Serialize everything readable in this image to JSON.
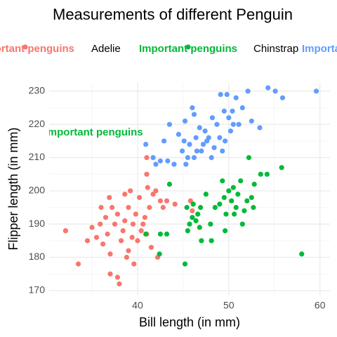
{
  "chart_data": {
    "type": "scatter",
    "title": "Measurements of different Penguin",
    "x_label": "Bill length (in mm)",
    "y_label": "Flipper length (in mm)",
    "legend_key_label": "Important penguins",
    "annotation": {
      "text": "Important penguins",
      "x": 35.2,
      "y": 217.5,
      "color": "#00BA38"
    },
    "xlim": [
      30.3,
      61.1
    ],
    "ylim": [
      168.7,
      232.5
    ],
    "xticks": [
      40,
      50,
      60
    ],
    "yticks": [
      170,
      180,
      190,
      200,
      210,
      220,
      230
    ],
    "xminor": [
      35,
      45,
      55
    ],
    "yminor": [
      175,
      185,
      195,
      205,
      215,
      225
    ],
    "grid": true,
    "series": [
      {
        "name": "Adelie",
        "color": "#F8766D",
        "x": [
          32.1,
          33.5,
          34.5,
          35,
          35.5,
          35.9,
          36.2,
          36.5,
          36.7,
          36.9,
          37,
          37.2,
          37.5,
          37.8,
          37.8,
          38,
          38.2,
          38.4,
          38.6,
          38.8,
          39,
          39.2,
          39.4,
          39.5,
          39.6,
          39.8,
          40,
          40.2,
          40.4,
          40.6,
          40.8,
          41,
          41.1,
          41.3,
          41.5,
          41.7,
          42,
          42.2,
          42.5,
          42.8,
          43.2,
          44.1,
          45.8,
          46,
          41,
          41,
          38.6,
          36,
          37,
          39
        ],
        "values": [
          188,
          178,
          185,
          189,
          186,
          190,
          184,
          192,
          187,
          198,
          181,
          195,
          190,
          174,
          193,
          172,
          185,
          188,
          191,
          180,
          195,
          200,
          186,
          190,
          178,
          193,
          185,
          198,
          188,
          190,
          192,
          187,
          201,
          195,
          183,
          199,
          200,
          180,
          197,
          195,
          197,
          196,
          197,
          194,
          210,
          205,
          199,
          195,
          175,
          182
        ]
      },
      {
        "name": "Chinstrap",
        "color": "#00BA38",
        "x": [
          40.9,
          42.4,
          42.5,
          43.2,
          43.5,
          45.2,
          45.4,
          45.5,
          45.7,
          46,
          46.1,
          46.4,
          46.6,
          46.8,
          47,
          47.5,
          48,
          48.1,
          48.5,
          49,
          49.3,
          49.5,
          49.7,
          50,
          50.3,
          50.5,
          50.8,
          51,
          51.3,
          51.5,
          51.7,
          52,
          52.2,
          52.5,
          52.8,
          53.5,
          54.2,
          55.8,
          58,
          46.9,
          49.6,
          50.6,
          52.7
        ],
        "values": [
          187,
          181,
          187,
          187,
          202,
          178,
          195,
          188,
          190,
          192,
          196,
          191,
          193,
          189,
          185,
          199,
          190,
          185,
          195,
          196,
          203,
          198,
          193,
          200,
          197,
          201,
          195,
          199,
          203,
          190,
          194,
          197,
          210,
          198,
          202,
          205,
          205,
          207,
          181,
          195,
          188,
          193,
          195
        ]
      },
      {
        "color": "#619CFF",
        "x": [
          40.9,
          41.7,
          42,
          42.5,
          42.9,
          43.3,
          43.5,
          44,
          44.5,
          44.9,
          45.1,
          45.2,
          45.5,
          45.7,
          46,
          46.2,
          46.4,
          46.5,
          46.8,
          47.2,
          47.4,
          47.6,
          47.8,
          48.1,
          48.2,
          48.4,
          48.7,
          49,
          49.1,
          49.3,
          49.5,
          49.6,
          49.8,
          50,
          50.2,
          50.4,
          50.5,
          50.8,
          51.1,
          51.5,
          52.1,
          52.5,
          53.4,
          54.3,
          55.1,
          55.9,
          59.6,
          47,
          45.3,
          46.2
        ],
        "values": [
          214,
          210,
          208,
          209,
          215,
          209,
          220,
          208,
          217,
          212,
          215,
          221,
          210,
          214,
          225,
          210,
          216,
          212,
          219,
          214,
          218,
          215,
          216,
          210,
          222,
          213,
          220,
          216,
          229,
          212,
          224,
          215,
          229,
          222,
          218,
          224,
          220,
          228,
          220,
          225,
          230,
          221,
          219,
          231,
          230,
          228,
          230,
          212,
          208,
          223
        ]
      }
    ]
  }
}
